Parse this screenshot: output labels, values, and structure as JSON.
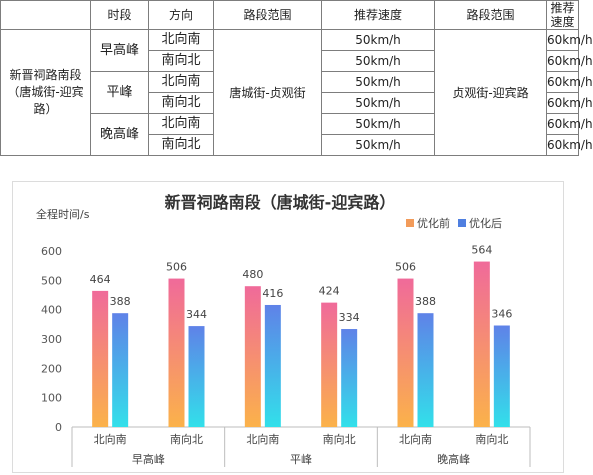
{
  "table": {
    "headers": [
      "时段",
      "方向",
      "路段范围",
      "推荐速度",
      "路段范围",
      "推荐速度"
    ],
    "road_name": "新晋祠路南段（唐城街-迎宾路）",
    "periods": [
      "早高峰",
      "平峰",
      "晚高峰"
    ],
    "directions": [
      "北向南",
      "南向北",
      "北向南",
      "南向北",
      "北向南",
      "南向北"
    ],
    "segment_1": "唐城街-贞观街",
    "segment_2": "贞观街-迎宾路",
    "speeds_1": [
      "50km/h",
      "50km/h",
      "50km/h",
      "50km/h",
      "50km/h",
      "50km/h"
    ],
    "speeds_2": [
      "60km/h",
      "60km/h",
      "60km/h",
      "60km/h",
      "60km/h",
      "60km/h"
    ]
  },
  "chart_data": {
    "type": "bar",
    "title": "新晋祠路南段（唐城街-迎宾路）",
    "ylabel": "全程时间/s",
    "xlabel": "",
    "ylim": [
      0,
      600
    ],
    "yticks": [
      0,
      100,
      200,
      300,
      400,
      500,
      600
    ],
    "grid": false,
    "legend_position": "top-right",
    "groups": [
      "早高峰",
      "平峰",
      "晚高峰"
    ],
    "categories": [
      "北向南",
      "南向北",
      "北向南",
      "南向北",
      "北向南",
      "南向北"
    ],
    "series": [
      {
        "name": "优化前",
        "values": [
          464,
          506,
          480,
          424,
          506,
          564
        ],
        "color_top": "#f06a9a",
        "color_bottom": "#fbb24a"
      },
      {
        "name": "优化后",
        "values": [
          388,
          344,
          416,
          334,
          388,
          346
        ],
        "color_top": "#5f82e8",
        "color_bottom": "#32e0ea"
      }
    ],
    "legend_colors": [
      "#f29b5a",
      "#4f7fe0"
    ]
  }
}
